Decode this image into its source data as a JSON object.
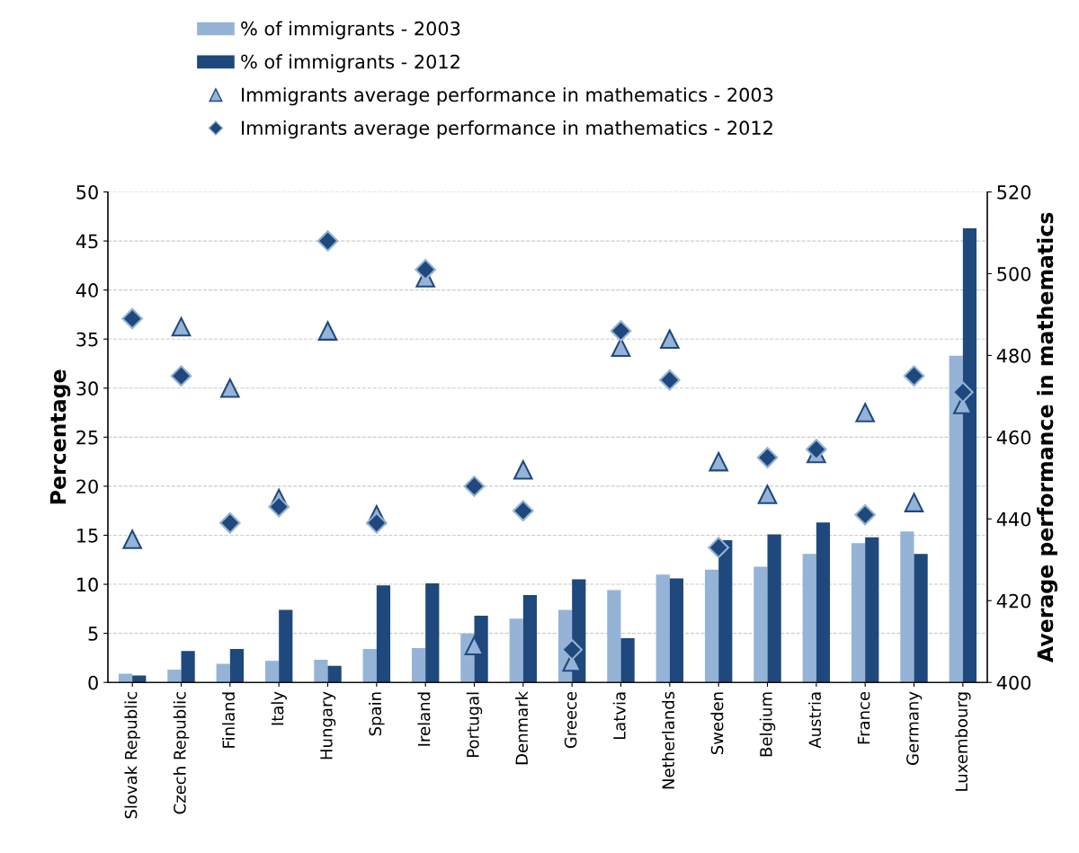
{
  "chart_data": {
    "type": "bar",
    "categories": [
      "Slovak Republic",
      "Czech Republic",
      "Finland",
      "Italy",
      "Hungary",
      "Spain",
      "Ireland",
      "Portugal",
      "Denmark",
      "Greece",
      "Latvia",
      "Netherlands",
      "Sweden",
      "Belgium",
      "Austria",
      "France",
      "Germany",
      "Luxembourg"
    ],
    "series": [
      {
        "name": "% of immigrants - 2003",
        "color": "#95b3d7",
        "values": [
          0.9,
          1.3,
          1.9,
          2.2,
          2.3,
          3.4,
          3.5,
          5.0,
          6.5,
          7.4,
          9.4,
          11.0,
          11.5,
          11.8,
          13.1,
          14.2,
          15.4,
          33.3
        ]
      },
      {
        "name": "% of immigrants - 2012",
        "color": "#1f497d",
        "values": [
          0.7,
          3.2,
          3.4,
          7.4,
          1.7,
          9.9,
          10.1,
          6.8,
          8.9,
          10.5,
          4.5,
          10.6,
          14.5,
          15.1,
          16.3,
          14.8,
          13.1,
          46.3
        ]
      },
      {
        "name": "Immigrants average performance in mathematics - 2003",
        "type": "scatter",
        "axis": "y2",
        "marker": "triangle",
        "color": "#95b3d7",
        "values": [
          435,
          487,
          472,
          445,
          486,
          441,
          499,
          409,
          452,
          405,
          482,
          484,
          454,
          446,
          456,
          466,
          444,
          468
        ]
      },
      {
        "name": "Immigrants average performance in mathematics - 2012",
        "type": "scatter",
        "axis": "y2",
        "marker": "diamond",
        "color": "#1f497d",
        "values": [
          489,
          475,
          439,
          443,
          508,
          439,
          501,
          448,
          442,
          408,
          486,
          474,
          433,
          455,
          457,
          441,
          475,
          471
        ]
      }
    ],
    "ylabel": "Percentage",
    "y2label": "Average performance in mathematics",
    "ylim": [
      0,
      50
    ],
    "yticks": [
      0,
      5,
      10,
      15,
      20,
      25,
      30,
      35,
      40,
      45,
      50
    ],
    "y2lim": [
      400,
      520
    ],
    "y2ticks": [
      400,
      420,
      440,
      460,
      480,
      500,
      520
    ],
    "grid": "y",
    "legend": "top"
  }
}
